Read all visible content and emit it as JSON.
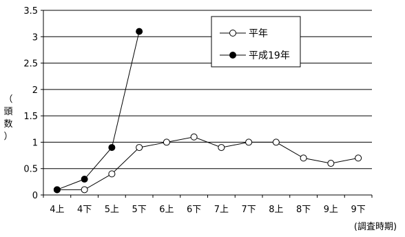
{
  "chart_data": {
    "type": "line",
    "title": "",
    "ylabel": "（頭数）",
    "xlabel": "(調査時期)",
    "ylim": [
      0,
      3.5
    ],
    "yticks": [
      0,
      0.5,
      1,
      1.5,
      2,
      2.5,
      3,
      3.5
    ],
    "ytick_labels": [
      "0",
      "0.5",
      "1",
      "1.5",
      "2",
      "2.5",
      "3",
      "3.5"
    ],
    "grid": true,
    "legend_position": "top-right",
    "categories": [
      "4上",
      "4下",
      "5上",
      "5下",
      "6上",
      "6下",
      "7上",
      "7下",
      "8上",
      "8下",
      "9上",
      "9下"
    ],
    "series": [
      {
        "name": "平年",
        "marker": "open-circle",
        "color": "#000000",
        "values": [
          0.1,
          0.1,
          0.4,
          0.9,
          1.0,
          1.1,
          0.9,
          1.0,
          1.0,
          0.7,
          0.6,
          0.7
        ]
      },
      {
        "name": "平成19年",
        "marker": "filled-circle",
        "color": "#000000",
        "values": [
          0.1,
          0.3,
          0.9,
          3.1,
          null,
          null,
          null,
          null,
          null,
          null,
          null,
          null
        ]
      }
    ]
  }
}
